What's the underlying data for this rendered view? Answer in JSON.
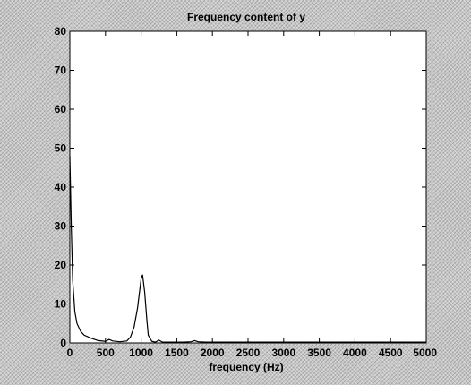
{
  "chart_data": {
    "type": "line",
    "title": "Frequency content of y",
    "xlabel": "frequency (Hz)",
    "ylabel": "",
    "xlim": [
      0,
      5000
    ],
    "ylim": [
      0,
      80
    ],
    "x_ticks": [
      0,
      500,
      1000,
      1500,
      2000,
      2500,
      3000,
      3500,
      4000,
      4500,
      5000
    ],
    "y_ticks": [
      0,
      10,
      20,
      30,
      40,
      50,
      60,
      70,
      80
    ],
    "x_tick_labels": [
      "0",
      "500",
      "1000",
      "1500",
      "2000",
      "2500",
      "3000",
      "3500",
      "4000",
      "4500",
      "5000"
    ],
    "y_tick_labels": [
      "0",
      "10",
      "20",
      "30",
      "40",
      "50",
      "60",
      "70",
      "80"
    ],
    "grid": false,
    "series": [
      {
        "x": [
          0,
          20,
          40,
          70,
          100,
          150,
          200,
          300,
          400,
          500,
          550,
          600,
          700,
          800,
          850,
          900,
          950,
          1000,
          1020,
          1050,
          1080,
          1100,
          1150,
          1200,
          1250,
          1300,
          1400,
          1500,
          1600,
          1700,
          1750,
          1800,
          1900,
          2000,
          2500,
          3000,
          3500,
          4000,
          4500,
          5000
        ],
        "y": [
          48,
          30,
          16,
          8,
          5,
          3,
          2,
          1.2,
          0.6,
          0.4,
          0.9,
          0.5,
          0.3,
          0.5,
          1.5,
          4,
          9,
          16.5,
          17.5,
          13,
          6,
          2,
          0.4,
          0.2,
          0.7,
          0.2,
          0.2,
          0.2,
          0.2,
          0.3,
          0.6,
          0.3,
          0.2,
          0.2,
          0.2,
          0.2,
          0.2,
          0.2,
          0.2,
          0.2
        ],
        "color": "#000000"
      }
    ]
  }
}
